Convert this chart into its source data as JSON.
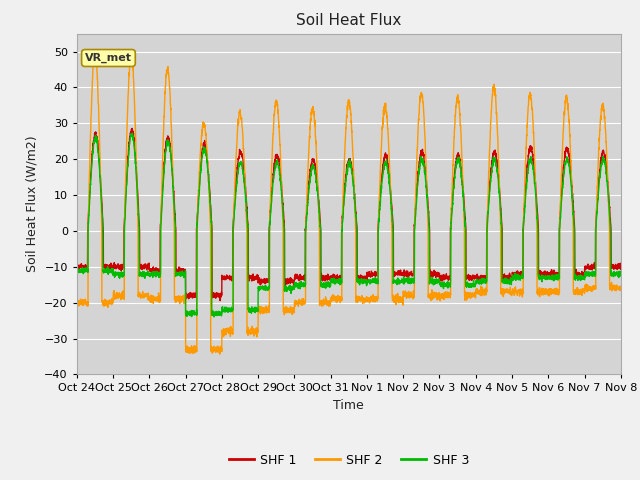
{
  "title": "Soil Heat Flux",
  "ylabel": "Soil Heat Flux (W/m2)",
  "xlabel": "Time",
  "ylim": [
    -40,
    55
  ],
  "yticks": [
    -40,
    -30,
    -20,
    -10,
    0,
    10,
    20,
    30,
    40,
    50
  ],
  "colors": {
    "SHF1": "#cc0000",
    "SHF2": "#ff9900",
    "SHF3": "#00bb00"
  },
  "legend_labels": [
    "SHF 1",
    "SHF 2",
    "SHF 3"
  ],
  "vr_met_label": "VR_met",
  "fig_facecolor": "#f0f0f0",
  "plot_bg": "#d4d4d4",
  "grid_color": "#ffffff",
  "linewidth": 1.0,
  "title_fontsize": 11,
  "axis_fontsize": 9,
  "tick_fontsize": 8,
  "shf1_peaks": [
    27,
    28,
    26,
    24,
    22,
    21,
    20,
    20,
    21,
    22,
    21,
    22,
    23,
    23,
    22
  ],
  "shf2_peaks": [
    50,
    49,
    45,
    30,
    33,
    36,
    34,
    36,
    35,
    38,
    37,
    40,
    38,
    37,
    35
  ],
  "shf3_peaks": [
    26,
    27,
    25,
    23,
    19,
    19,
    18,
    19,
    19,
    20,
    20,
    20,
    20,
    20,
    20
  ],
  "shf1_night": [
    -10,
    -10,
    -11,
    -18,
    -13,
    -14,
    -13,
    -13,
    -12,
    -12,
    -13,
    -13,
    -12,
    -12,
    -10
  ],
  "shf2_night": [
    -20,
    -18,
    -19,
    -33,
    -28,
    -22,
    -20,
    -19,
    -19,
    -18,
    -18,
    -17,
    -17,
    -17,
    -16
  ],
  "shf3_night": [
    -11,
    -12,
    -12,
    -23,
    -22,
    -16,
    -15,
    -14,
    -14,
    -14,
    -15,
    -14,
    -13,
    -13,
    -12
  ],
  "tick_labels": [
    "Oct 24",
    "Oct 25",
    "Oct 26",
    "Oct 27",
    "Oct 28",
    "Oct 29",
    "Oct 30",
    "Oct 31",
    "Nov 1",
    "Nov 2",
    "Nov 3",
    "Nov 4",
    "Nov 5",
    "Nov 6",
    "Nov 7",
    "Nov 8"
  ],
  "n_days": 15,
  "samples_per_day": 240
}
